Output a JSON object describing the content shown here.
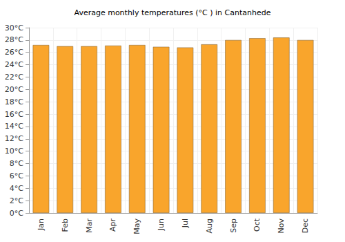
{
  "chart_data": {
    "type": "bar",
    "title": "Average monthly temperatures (°C ) in Cantanhede",
    "categories": [
      "Jan",
      "Feb",
      "Mar",
      "Apr",
      "May",
      "Jun",
      "Jul",
      "Aug",
      "Sep",
      "Oct",
      "Nov",
      "Dec"
    ],
    "values": [
      27.2,
      27.0,
      27.0,
      27.1,
      27.2,
      26.9,
      26.8,
      27.3,
      28.0,
      28.3,
      28.4,
      28.0
    ],
    "color": "#f9a52c",
    "ylim": [
      0,
      30
    ],
    "yticks": [
      {
        "value": 0,
        "label": "0°C"
      },
      {
        "value": 2,
        "label": "2°C"
      },
      {
        "value": 4,
        "label": "4°C"
      },
      {
        "value": 6,
        "label": "6°C"
      },
      {
        "value": 8,
        "label": "8°C"
      },
      {
        "value": 10,
        "label": "10°C"
      },
      {
        "value": 12,
        "label": "12°C"
      },
      {
        "value": 14,
        "label": "14°C"
      },
      {
        "value": 16,
        "label": "16°C"
      },
      {
        "value": 18,
        "label": "18°C"
      },
      {
        "value": 20,
        "label": "20°C"
      },
      {
        "value": 22,
        "label": "22°C"
      },
      {
        "value": 24,
        "label": "24°C"
      },
      {
        "value": 26,
        "label": "26°C"
      },
      {
        "value": 28,
        "label": "28°C"
      },
      {
        "value": 30,
        "label": "30°C"
      }
    ],
    "grid": true
  }
}
